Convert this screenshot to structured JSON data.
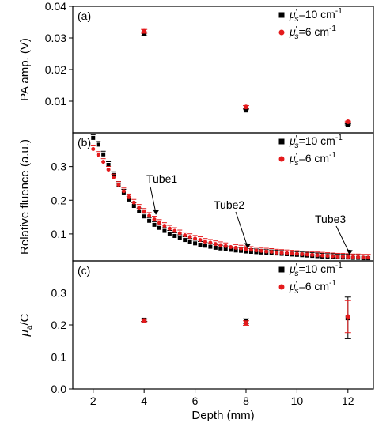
{
  "chart_data": [
    {
      "type": "scatter",
      "panel_label": "(a)",
      "ylabel": "PA amp. (V)",
      "ylim": [
        0,
        0.04
      ],
      "yticks": [
        0.01,
        0.02,
        0.03,
        0.04
      ],
      "ytick_labels": [
        "0.01",
        "0.02",
        "0.03",
        "0.04"
      ],
      "legend_position": "top-right",
      "series": [
        {
          "name": "μ's=10 cm-1",
          "color": "#000000",
          "marker": "square",
          "x": [
            4,
            8,
            12
          ],
          "y": [
            0.0313,
            0.0072,
            0.0027
          ],
          "err": [
            0.0006,
            0.0003,
            0.0002
          ]
        },
        {
          "name": "μ's=6 cm-1",
          "color": "#e41a1c",
          "marker": "circle",
          "x": [
            4,
            8,
            12
          ],
          "y": [
            0.0321,
            0.0082,
            0.0035
          ],
          "err": [
            0.0006,
            0.0004,
            0.0002
          ]
        }
      ]
    },
    {
      "type": "scatter",
      "panel_label": "(b)",
      "ylabel": "Relative fluence (a.u.)",
      "ylim": [
        0.02,
        0.4
      ],
      "yticks": [
        0.1,
        0.2,
        0.3
      ],
      "ytick_labels": [
        "0.1",
        "0.2",
        "0.3"
      ],
      "legend_position": "top-right",
      "annotations": [
        {
          "text": "Tube1",
          "x": 4.4,
          "y": 0.152
        },
        {
          "text": "Tube2",
          "x": 8.0,
          "y": 0.052
        },
        {
          "text": "Tube3",
          "x": 12.0,
          "y": 0.033
        }
      ],
      "series": [
        {
          "name": "μ's=10 cm-1",
          "color": "#000000",
          "marker": "square",
          "x": [
            2.0,
            2.2,
            2.4,
            2.6,
            2.8,
            3.0,
            3.2,
            3.4,
            3.6,
            3.8,
            4.0,
            4.2,
            4.4,
            4.6,
            4.8,
            5.0,
            5.2,
            5.4,
            5.6,
            5.8,
            6.0,
            6.2,
            6.4,
            6.6,
            6.8,
            7.0,
            7.2,
            7.4,
            7.6,
            7.8,
            8.0,
            8.2,
            8.4,
            8.6,
            8.8,
            9.0,
            9.2,
            9.4,
            9.6,
            9.8,
            10.0,
            10.2,
            10.4,
            10.6,
            10.8,
            11.0,
            11.2,
            11.4,
            11.6,
            11.8,
            12.0,
            12.2,
            12.4,
            12.6,
            12.8
          ],
          "y": [
            0.385,
            0.365,
            0.336,
            0.305,
            0.275,
            0.246,
            0.223,
            0.202,
            0.183,
            0.167,
            0.152,
            0.139,
            0.127,
            0.118,
            0.109,
            0.101,
            0.094,
            0.088,
            0.082,
            0.077,
            0.072,
            0.068,
            0.065,
            0.062,
            0.059,
            0.057,
            0.055,
            0.053,
            0.051,
            0.05,
            0.048,
            0.047,
            0.046,
            0.045,
            0.044,
            0.043,
            0.042,
            0.041,
            0.04,
            0.039,
            0.038,
            0.037,
            0.036,
            0.035,
            0.034,
            0.033,
            0.032,
            0.032,
            0.031,
            0.03,
            0.03,
            0.029,
            0.029,
            0.028,
            0.028
          ]
        },
        {
          "name": "μ's=6 cm-1",
          "color": "#e41a1c",
          "marker": "circle",
          "x": [
            2.0,
            2.2,
            2.4,
            2.6,
            2.8,
            3.0,
            3.2,
            3.4,
            3.6,
            3.8,
            4.0,
            4.2,
            4.4,
            4.6,
            4.8,
            5.0,
            5.2,
            5.4,
            5.6,
            5.8,
            6.0,
            6.2,
            6.4,
            6.6,
            6.8,
            7.0,
            7.2,
            7.4,
            7.6,
            7.8,
            8.0,
            8.2,
            8.4,
            8.6,
            8.8,
            9.0,
            9.2,
            9.4,
            9.6,
            9.8,
            10.0,
            10.2,
            10.4,
            10.6,
            10.8,
            11.0,
            11.2,
            11.4,
            11.6,
            11.8,
            12.0,
            12.2,
            12.4,
            12.6,
            12.8
          ],
          "y": [
            0.352,
            0.335,
            0.314,
            0.291,
            0.268,
            0.246,
            0.227,
            0.209,
            0.193,
            0.178,
            0.166,
            0.154,
            0.143,
            0.133,
            0.124,
            0.116,
            0.109,
            0.102,
            0.096,
            0.091,
            0.086,
            0.082,
            0.077,
            0.074,
            0.07,
            0.067,
            0.064,
            0.061,
            0.059,
            0.057,
            0.055,
            0.053,
            0.051,
            0.05,
            0.048,
            0.047,
            0.045,
            0.044,
            0.043,
            0.042,
            0.041,
            0.04,
            0.039,
            0.038,
            0.037,
            0.036,
            0.035,
            0.034,
            0.033,
            0.033,
            0.032,
            0.031,
            0.031,
            0.03,
            0.03
          ]
        }
      ]
    },
    {
      "type": "scatter",
      "panel_label": "(c)",
      "ylabel": "μa/C",
      "xlabel": "Depth (mm)",
      "ylim": [
        0,
        0.4
      ],
      "yticks": [
        0.0,
        0.1,
        0.2,
        0.3
      ],
      "ytick_labels": [
        "0.0",
        "0.1",
        "0.2",
        "0.3"
      ],
      "xlim": [
        1.2,
        13
      ],
      "xticks": [
        2,
        4,
        6,
        8,
        10,
        12
      ],
      "xtick_labels": [
        "2",
        "4",
        "6",
        "8",
        "10",
        "12"
      ],
      "legend_position": "top-right",
      "series": [
        {
          "name": "μ's=10 cm-1",
          "color": "#000000",
          "marker": "square",
          "x": [
            4,
            8,
            12
          ],
          "y": [
            0.215,
            0.212,
            0.222
          ],
          "err": [
            0.004,
            0.007,
            0.065
          ]
        },
        {
          "name": "μ's=6 cm-1",
          "color": "#e41a1c",
          "marker": "circle",
          "x": [
            4,
            8,
            12
          ],
          "y": [
            0.214,
            0.206,
            0.226
          ],
          "err": [
            0.004,
            0.007,
            0.05
          ]
        }
      ]
    }
  ]
}
